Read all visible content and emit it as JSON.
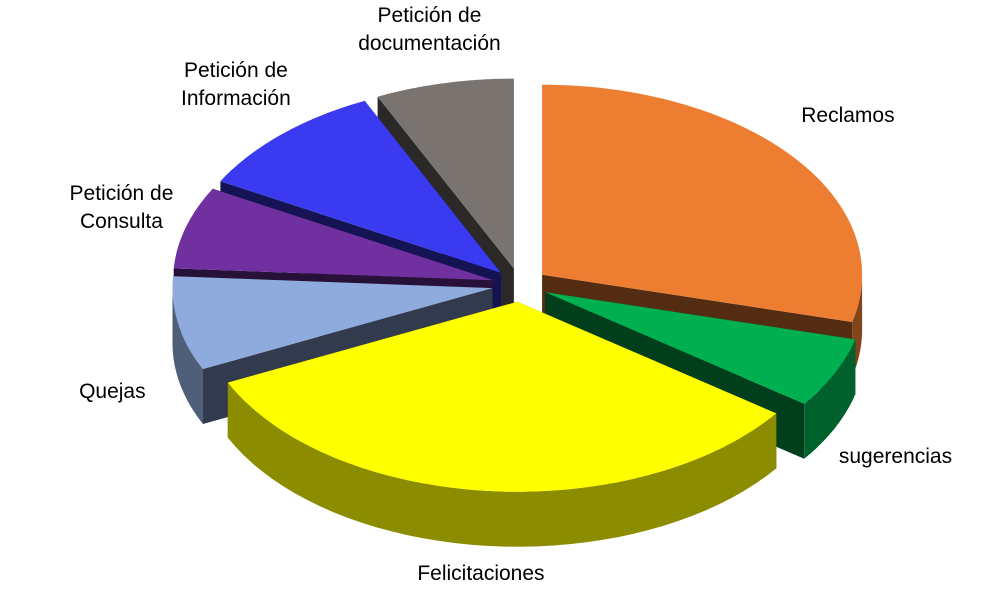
{
  "chart_data": {
    "type": "pie",
    "three_d": true,
    "exploded": true,
    "categories": [
      "Reclamos",
      "sugerencias",
      "Felicitaciones",
      "Quejas",
      "Petición de Consulta",
      "Petición de Información",
      "Petición de documentación"
    ],
    "values": [
      29,
      6,
      33,
      8,
      7,
      10,
      7
    ],
    "colors": [
      "#ed7d31",
      "#00b050",
      "#ffff00",
      "#8faadc",
      "#7030a0",
      "#3a3af0",
      "#7a7471"
    ]
  }
}
